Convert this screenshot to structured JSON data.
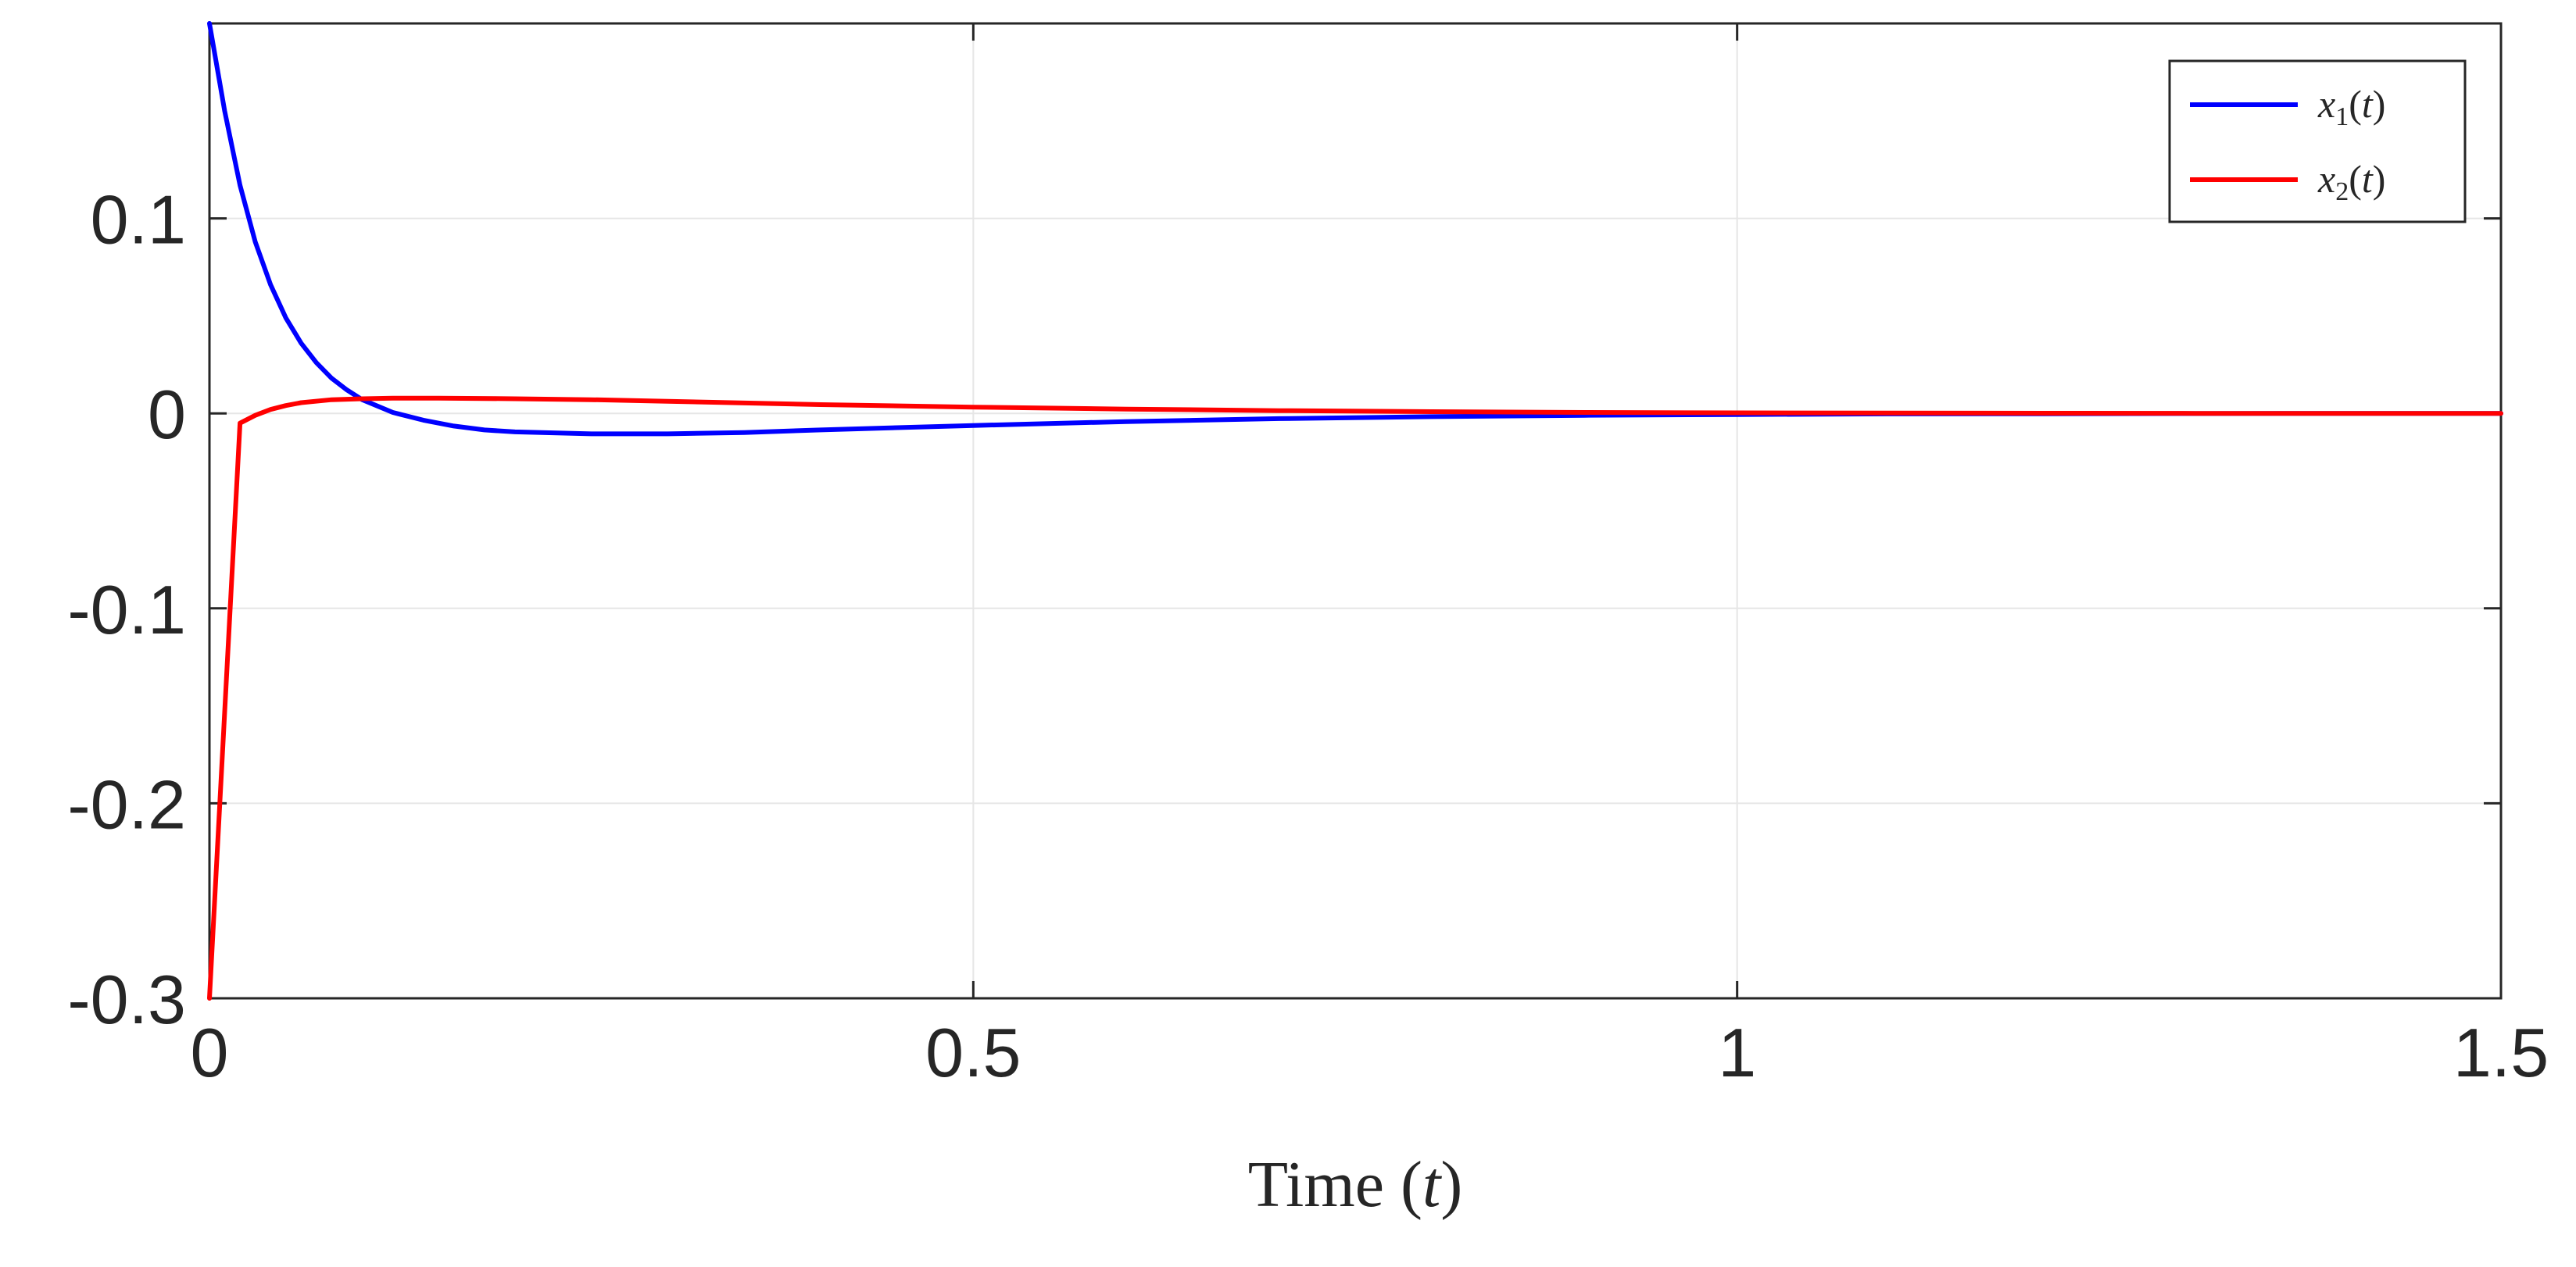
{
  "chart_data": {
    "type": "line",
    "title": "",
    "xlabel": "Time (t)",
    "xlabel_prefix": "Time (",
    "xlabel_var": "t",
    "xlabel_suffix": ")",
    "ylabel": "",
    "xlim": [
      0,
      1.5
    ],
    "ylim": [
      -0.3,
      0.2
    ],
    "xticks": [
      0,
      0.5,
      1,
      1.5
    ],
    "xtick_labels": [
      "0",
      "0.5",
      "1",
      "1.5"
    ],
    "yticks": [
      -0.3,
      -0.2,
      -0.1,
      0,
      0.1
    ],
    "ytick_labels": [
      "-0.3",
      "-0.2",
      "-0.1",
      "0",
      "0.1"
    ],
    "grid": true,
    "legend_position": "top-right",
    "series": [
      {
        "name": "x1(t)",
        "label_var": "x",
        "label_sub": "1",
        "label_arg": "t",
        "color": "#0000ff",
        "x": [
          0,
          0.01,
          0.02,
          0.03,
          0.04,
          0.05,
          0.06,
          0.07,
          0.08,
          0.09,
          0.1,
          0.12,
          0.14,
          0.16,
          0.18,
          0.2,
          0.25,
          0.3,
          0.35,
          0.4,
          0.5,
          0.6,
          0.7,
          0.8,
          0.9,
          1.0,
          1.1,
          1.2,
          1.3,
          1.4,
          1.5
        ],
        "y": [
          0.2,
          0.155,
          0.117,
          0.088,
          0.066,
          0.049,
          0.036,
          0.026,
          0.018,
          0.012,
          0.007,
          0.0005,
          -0.0035,
          -0.0065,
          -0.0085,
          -0.0095,
          -0.0105,
          -0.0105,
          -0.0098,
          -0.0085,
          -0.0062,
          -0.0042,
          -0.0027,
          -0.0017,
          -0.001,
          -0.0006,
          -0.0003,
          -0.0002,
          -0.0001,
          0,
          0
        ]
      },
      {
        "name": "x2(t)",
        "label_var": "x",
        "label_sub": "2",
        "label_arg": "t",
        "color": "#ff0000",
        "x": [
          0,
          0.02,
          0.03,
          0.04,
          0.05,
          0.06,
          0.08,
          0.1,
          0.12,
          0.15,
          0.2,
          0.25,
          0.3,
          0.4,
          0.5,
          0.6,
          0.7,
          0.8,
          0.9,
          1.0,
          1.1,
          1.2,
          1.3,
          1.4,
          1.5
        ],
        "y": [
          -0.3,
          -0.005,
          -0.001,
          0.002,
          0.004,
          0.0055,
          0.007,
          0.0075,
          0.0078,
          0.0078,
          0.0075,
          0.007,
          0.0062,
          0.0045,
          0.0032,
          0.0022,
          0.0014,
          0.0009,
          0.0005,
          0.0003,
          0.0002,
          0.0001,
          0,
          0,
          0
        ]
      }
    ]
  }
}
